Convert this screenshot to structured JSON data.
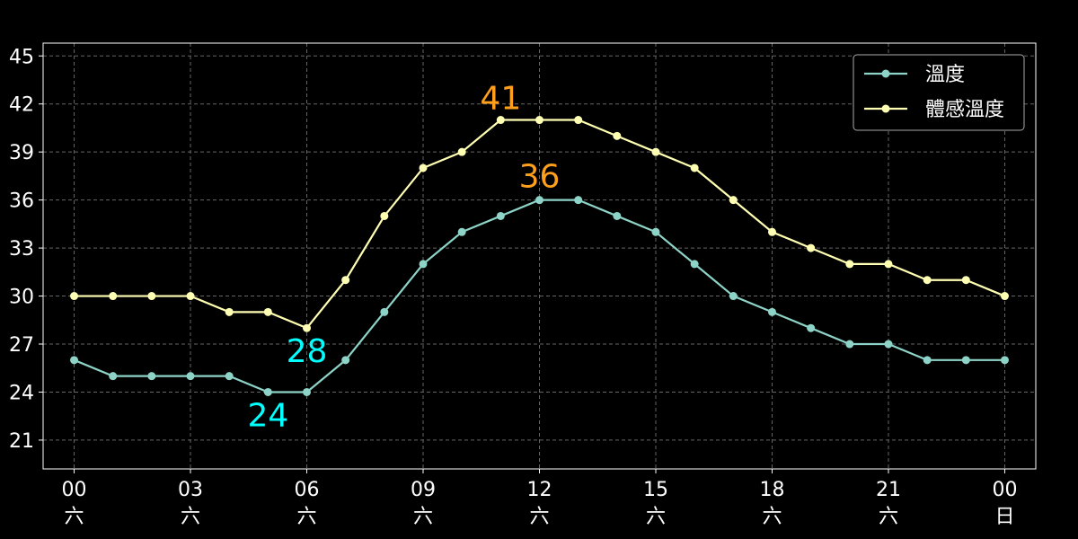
{
  "chart_data": {
    "type": "line",
    "x_tick_labels": [
      {
        "hour": "00",
        "day": "六"
      },
      {
        "hour": "03",
        "day": "六"
      },
      {
        "hour": "06",
        "day": "六"
      },
      {
        "hour": "09",
        "day": "六"
      },
      {
        "hour": "12",
        "day": "六"
      },
      {
        "hour": "15",
        "day": "六"
      },
      {
        "hour": "18",
        "day": "六"
      },
      {
        "hour": "21",
        "day": "六"
      },
      {
        "hour": "00",
        "day": "日"
      }
    ],
    "x": [
      0,
      1,
      2,
      3,
      4,
      5,
      6,
      7,
      8,
      9,
      10,
      11,
      12,
      13,
      14,
      15,
      16,
      17,
      18,
      19,
      20,
      21,
      22,
      23,
      24
    ],
    "xlim": [
      -0.8,
      24.8
    ],
    "ylim": [
      19.2,
      45.8
    ],
    "y_ticks": [
      21,
      24,
      27,
      30,
      33,
      36,
      39,
      42,
      45
    ],
    "grid": true,
    "legend_position": "top-right",
    "series": [
      {
        "name": "溫度",
        "color": "#8dd3c7",
        "values": [
          26,
          25,
          25,
          25,
          25,
          24,
          24,
          26,
          29,
          32,
          34,
          35,
          36,
          36,
          35,
          34,
          32,
          30,
          29,
          28,
          27,
          27,
          26,
          26,
          26
        ]
      },
      {
        "name": "體感溫度",
        "color": "#ffffb3",
        "values": [
          30,
          30,
          30,
          30,
          29,
          29,
          28,
          31,
          35,
          38,
          39,
          41,
          41,
          41,
          40,
          39,
          38,
          36,
          34,
          33,
          32,
          32,
          31,
          31,
          30
        ]
      }
    ],
    "annotations": [
      {
        "text": "24",
        "x": 5,
        "y": 24,
        "color": "#00ffff",
        "anchor": "min-temp"
      },
      {
        "text": "28",
        "x": 6,
        "y": 28,
        "color": "#00ffff",
        "anchor": "min-feels"
      },
      {
        "text": "36",
        "x": 12,
        "y": 36,
        "color": "#ff9f1c",
        "anchor": "max-temp"
      },
      {
        "text": "41",
        "x": 11,
        "y": 41,
        "color": "#ff9f1c",
        "anchor": "max-feels"
      }
    ]
  }
}
